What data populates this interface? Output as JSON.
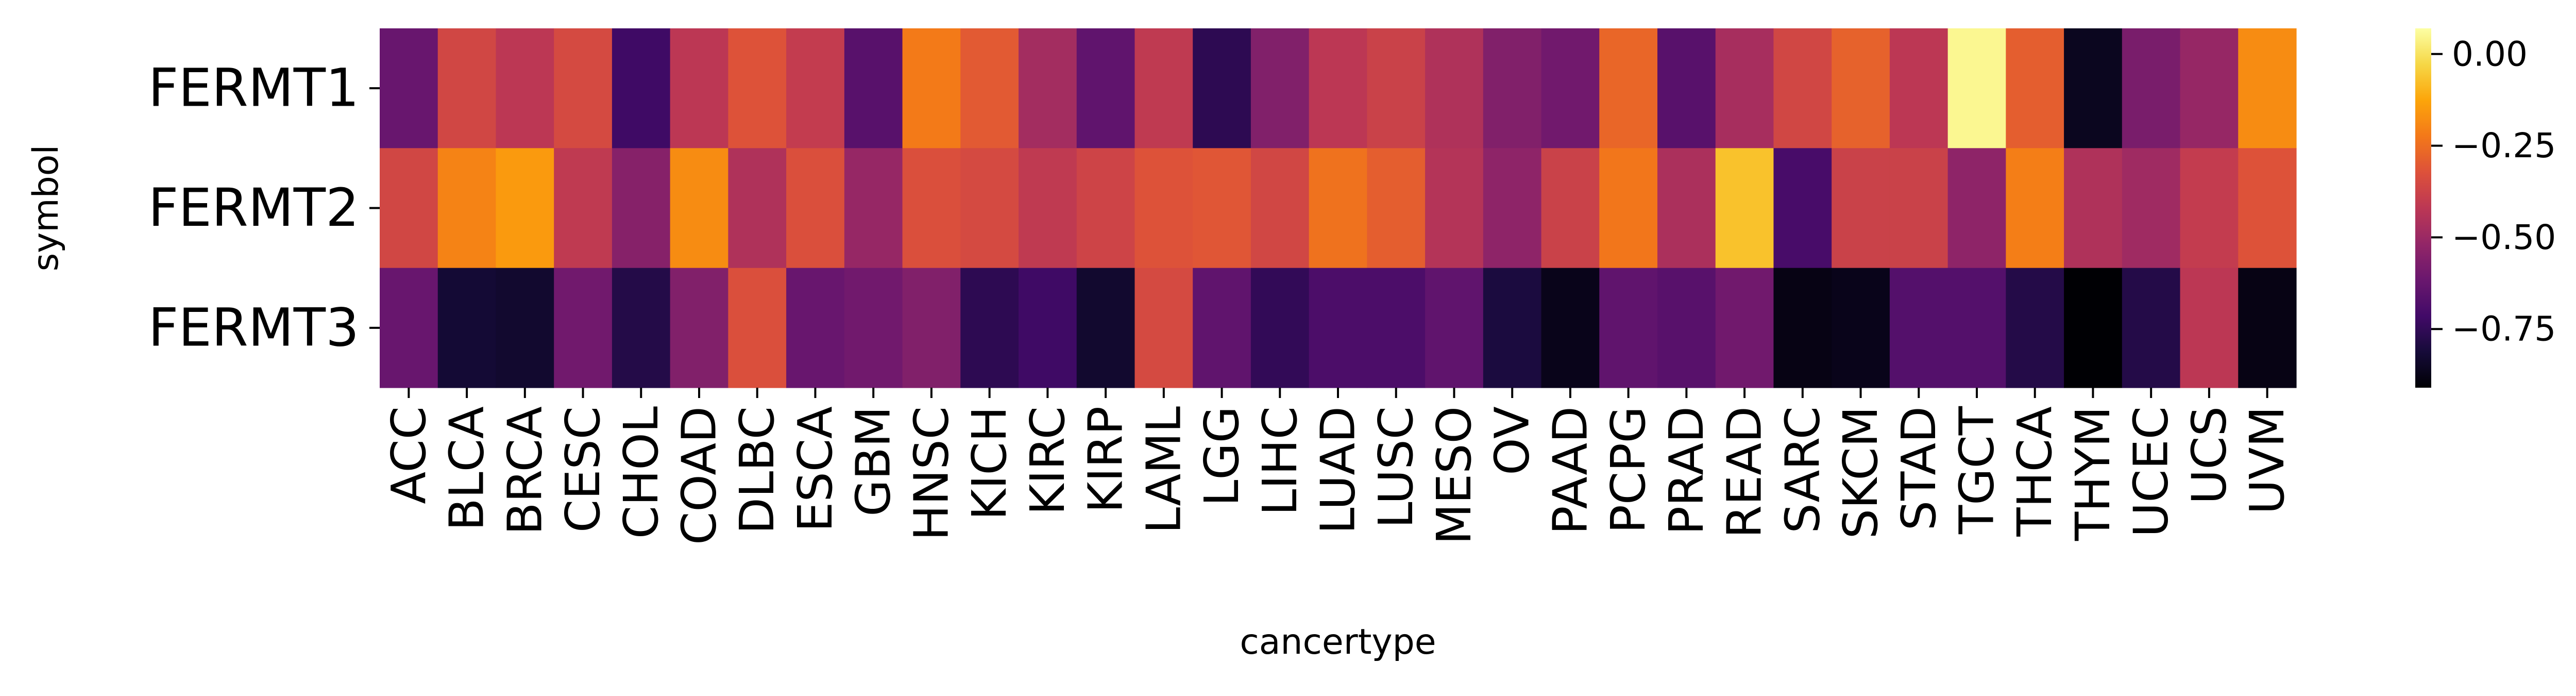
{
  "chart_data": {
    "type": "heatmap",
    "xlabel": "cancertype",
    "ylabel": "symbol",
    "x": [
      "ACC",
      "BLCA",
      "BRCA",
      "CESC",
      "CHOL",
      "COAD",
      "DLBC",
      "ESCA",
      "GBM",
      "HNSC",
      "KICH",
      "KIRC",
      "KIRP",
      "LAML",
      "LGG",
      "LIHC",
      "LUAD",
      "LUSC",
      "MESO",
      "OV",
      "PAAD",
      "PCPG",
      "PRAD",
      "READ",
      "SARC",
      "SKCM",
      "STAD",
      "TGCT",
      "THCA",
      "THYM",
      "UCEC",
      "UCS",
      "UVM"
    ],
    "y": [
      "FERMT1",
      "FERMT2",
      "FERMT3"
    ],
    "values": [
      [
        -0.62,
        -0.36,
        -0.42,
        -0.35,
        -0.72,
        -0.42,
        -0.32,
        -0.4,
        -0.66,
        -0.22,
        -0.3,
        -0.48,
        -0.64,
        -0.41,
        -0.76,
        -0.56,
        -0.42,
        -0.38,
        -0.45,
        -0.56,
        -0.6,
        -0.27,
        -0.66,
        -0.47,
        -0.36,
        -0.28,
        -0.42,
        0.05,
        -0.29,
        -0.86,
        -0.58,
        -0.51,
        -0.18
      ],
      [
        -0.36,
        -0.2,
        -0.15,
        -0.41,
        -0.55,
        -0.18,
        -0.45,
        -0.33,
        -0.51,
        -0.33,
        -0.35,
        -0.41,
        -0.37,
        -0.32,
        -0.31,
        -0.36,
        -0.24,
        -0.29,
        -0.44,
        -0.53,
        -0.38,
        -0.23,
        -0.46,
        -0.07,
        -0.7,
        -0.38,
        -0.38,
        -0.53,
        -0.21,
        -0.45,
        -0.49,
        -0.4,
        -0.32
      ],
      [
        -0.62,
        -0.82,
        -0.83,
        -0.6,
        -0.78,
        -0.56,
        -0.33,
        -0.62,
        -0.6,
        -0.56,
        -0.76,
        -0.72,
        -0.83,
        -0.35,
        -0.64,
        -0.75,
        -0.69,
        -0.69,
        -0.64,
        -0.8,
        -0.87,
        -0.64,
        -0.66,
        -0.6,
        -0.88,
        -0.87,
        -0.67,
        -0.67,
        -0.78,
        -0.91,
        -0.78,
        -0.42,
        -0.88
      ]
    ],
    "colormap": "inferno",
    "vmin": -0.91,
    "vmax": 0.07,
    "colorbar_ticks": [
      0.0,
      -0.25,
      -0.5,
      -0.75
    ],
    "colorbar_tick_labels": [
      "0.00",
      "−0.25",
      "−0.50",
      "−0.75"
    ],
    "legend_position": "right"
  }
}
